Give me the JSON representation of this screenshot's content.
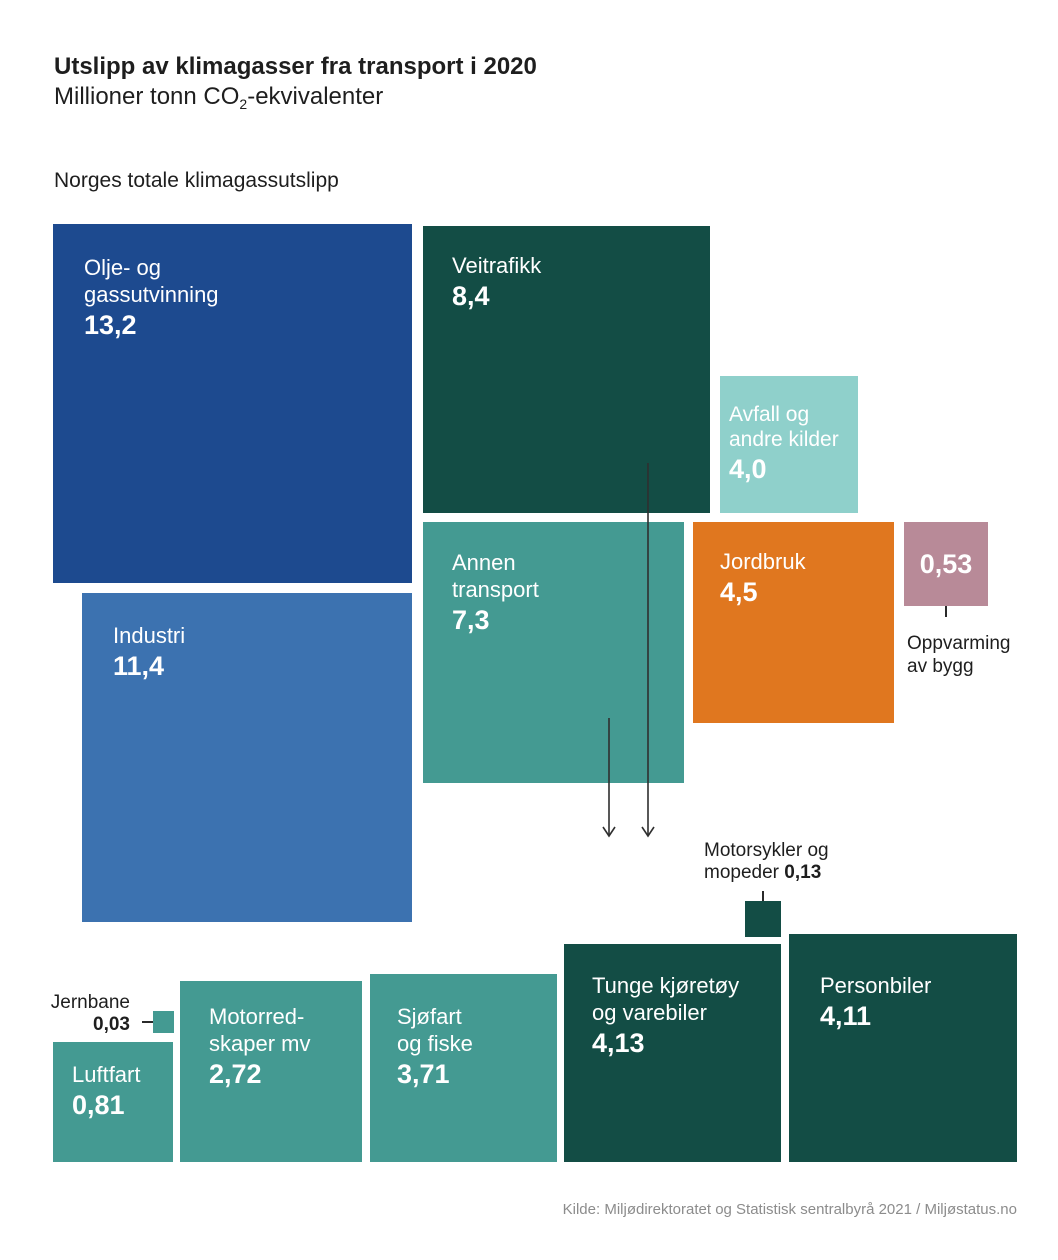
{
  "chart_data": {
    "type": "proportional-area",
    "title": "Utslipp av klimagasser fra transport i 2020",
    "subtitle": {
      "text_before": "Millioner tonn CO",
      "subscript": "2",
      "text_after": "-ekvivalenter"
    },
    "group_label": "Norges totale klimagassutslipp",
    "sectors": [
      {
        "label": [
          "Olje- og",
          "gassutvinning"
        ],
        "value": 13.2,
        "value_label": "13,2",
        "color": "#1d4a8f"
      },
      {
        "label": [
          "Industri"
        ],
        "value": 11.4,
        "value_label": "11,4",
        "color": "#3c72b0"
      },
      {
        "label": [
          "Veitrafikk"
        ],
        "value": 8.4,
        "value_label": "8,4",
        "color": "#134d45",
        "breakdown": [
          {
            "label": [
              "Tunge kjøretøy",
              "og varebiler"
            ],
            "value": 4.13,
            "value_label": "4,13",
            "color": "#134d45"
          },
          {
            "label": [
              "Motorsykler og",
              "mopeder"
            ],
            "value": 0.13,
            "value_label": "0,13",
            "color": "#134d45"
          },
          {
            "label": [
              "Personbiler"
            ],
            "value": 4.11,
            "value_label": "4,11",
            "color": "#134d45"
          }
        ]
      },
      {
        "label": [
          "Avfall og",
          "andre kilder"
        ],
        "value": 4.0,
        "value_label": "4,0",
        "color": "#8fd0cb"
      },
      {
        "label": [
          "Annen",
          "transport"
        ],
        "value": 7.3,
        "value_label": "7,3",
        "color": "#449a92",
        "breakdown": [
          {
            "label": [
              "Jernbane"
            ],
            "value": 0.03,
            "value_label": "0,03",
            "color": "#449a92"
          },
          {
            "label": [
              "Luftfart"
            ],
            "value": 0.81,
            "value_label": "0,81",
            "color": "#449a92"
          },
          {
            "label": [
              "Motorred-",
              "skaper mv"
            ],
            "value": 2.72,
            "value_label": "2,72",
            "color": "#449a92"
          },
          {
            "label": [
              "Sjøfart",
              "og fiske"
            ],
            "value": 3.71,
            "value_label": "3,71",
            "color": "#449a92"
          }
        ]
      },
      {
        "label": [
          "Jordbruk"
        ],
        "value": 4.5,
        "value_label": "4,5",
        "color": "#e0771f"
      },
      {
        "label": [
          "Oppvarming",
          "av bygg"
        ],
        "value": 0.53,
        "value_label": "0,53",
        "color": "#b88a98"
      }
    ]
  },
  "source": "Kilde: Miljødirektoratet og Statistisk sentralbyrå 2021 / Miljøstatus.no"
}
